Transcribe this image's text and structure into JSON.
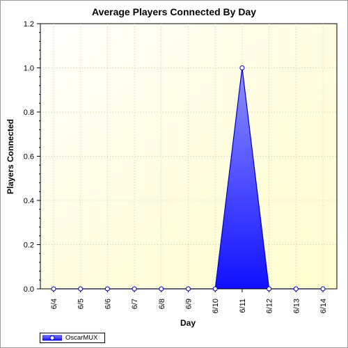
{
  "chart_data": {
    "type": "area",
    "title": "Average Players Connected By Day",
    "xlabel": "Day",
    "ylabel": "Players Connected",
    "categories": [
      "6/4",
      "6/5",
      "6/6",
      "6/7",
      "6/8",
      "6/9",
      "6/10",
      "6/11",
      "6/12",
      "6/13",
      "6/14"
    ],
    "series": [
      {
        "name": "OscarMUX",
        "values": [
          0,
          0,
          0,
          0,
          0,
          0,
          0,
          1.0,
          0,
          0,
          0
        ],
        "color": "#2020ff"
      }
    ],
    "ylim": [
      0,
      1.2
    ],
    "yticks": [
      "0.0",
      "0.2",
      "0.4",
      "0.6",
      "0.8",
      "1.0",
      "1.2"
    ],
    "grid": true,
    "legend_position": "bottom-left",
    "plot_background": "#fffff0"
  }
}
